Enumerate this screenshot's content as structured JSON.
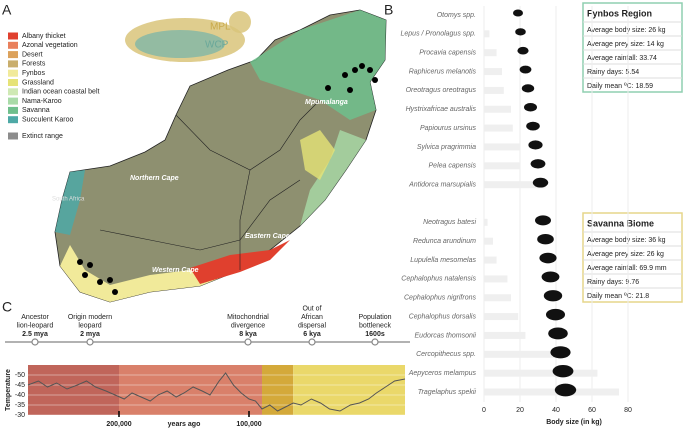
{
  "panels": {
    "a": "A",
    "b": "B",
    "c": "C"
  },
  "map": {
    "legend": [
      {
        "label": "Albany thicket",
        "color": "#e0402e"
      },
      {
        "label": "Azonal vegetation",
        "color": "#e9805c"
      },
      {
        "label": "Desert",
        "color": "#dca25c"
      },
      {
        "label": "Forests",
        "color": "#c9ae6c"
      },
      {
        "label": "Fynbos",
        "color": "#f1ea9a"
      },
      {
        "label": "Grassland",
        "color": "#e6e377"
      },
      {
        "label": "Indian ocean coastal belt",
        "color": "#cfe9b4"
      },
      {
        "label": "Nama-Karoo",
        "color": "#a9dba8"
      },
      {
        "label": "Savanna",
        "color": "#6fbf8c"
      },
      {
        "label": "Succulent Karoo",
        "color": "#4ea9a6"
      }
    ],
    "extinct_range": {
      "label": "Extinct range",
      "color": "#8c8c8c"
    },
    "cat_labels": [
      "MPL",
      "WCP"
    ],
    "province_labels": [
      "Mpumalanga",
      "Northern Cape",
      "Eastern Cape",
      "Western Cape",
      "South Africa"
    ]
  },
  "info_boxes": [
    {
      "title": "Fynbos Region",
      "lines": [
        "Average body size: 26 kg",
        "Average prey size: 14 kg",
        "Average rainfall: 33.74",
        "Rainy days: 5.54",
        "Daily mean ºC: 18.59"
      ],
      "color": "#8fcfb0"
    },
    {
      "title": "Savanna Biome",
      "lines": [
        "Average body size: 36 kg",
        "Average prey size: 26 kg",
        "Average rainfall: 69.9 mm",
        "Rainy days: 9.76",
        "Daily mean ºC: 21.8"
      ],
      "color": "#e6d58a"
    }
  ],
  "timeline": {
    "events": [
      {
        "label": [
          "Ancestor",
          "lion-leopard"
        ],
        "date": "2.5 mya"
      },
      {
        "label": [
          "Origin modern",
          "leopard"
        ],
        "date": "2 mya"
      },
      {
        "label": [
          "Mitochondrial",
          "divergence"
        ],
        "date": "8 kya"
      },
      {
        "label": [
          "Out of",
          "African",
          "dispersal"
        ],
        "date": "6 kya"
      },
      {
        "label": [
          "Population",
          "bottleneck"
        ],
        "date": "1600s"
      }
    ]
  },
  "chart_data": [
    {
      "type": "bar",
      "orientation": "horizontal",
      "xlabel": "Body size (in kg)",
      "color": "#efefef",
      "categories": [
        "Otomys spp.",
        "Lepus / Pronolagus spp.",
        "Procavia capensis",
        "Raphicerus melanotis",
        "Oreotragus oreotragus",
        "Hystrixafricae australis",
        "Papiourus ursinus",
        "Sylvica pragrimmia",
        "Pelea capensis",
        "Antidorca marsupialis",
        "Neotragus batesi",
        "Redunca arundinum",
        "Lupulella mesomelas",
        "Cephalophus natalensis",
        "Cephalophus nigrifrons",
        "Cephalophus dorsalis",
        "Eudorcas thomsonii",
        "Cercopithecus spp.",
        "Aepyceros melampus",
        "Tragelaphus spekii"
      ],
      "values": [
        0.1,
        3,
        7,
        10,
        11,
        15,
        16,
        20,
        20,
        34,
        2,
        5,
        7,
        13,
        15,
        19,
        23,
        42,
        63,
        75
      ],
      "xlim": [
        0,
        100
      ],
      "xticks": [
        0,
        20,
        40,
        60,
        80
      ],
      "grid": true
    },
    {
      "type": "line",
      "ylabel": "Temperature",
      "xlabel": "years ago",
      "inverted": true,
      "x": [
        270000,
        262000,
        255000,
        248000,
        240000,
        232000,
        225000,
        218000,
        210000,
        203000,
        196000,
        190000,
        183000,
        176000,
        170000,
        163000,
        156000,
        150000,
        143000,
        136000,
        130000,
        123000,
        118000,
        112000,
        106000,
        100000,
        95000,
        90000,
        84000,
        78000,
        72000,
        66000,
        60000,
        52000,
        45000,
        38000,
        30000,
        22000,
        15000,
        8000,
        2000,
        -5000,
        -12000,
        -20000
      ],
      "series": [
        {
          "color": "#555555",
          "values": [
            -45,
            -47,
            -44,
            -46,
            -43,
            -45,
            -47,
            -44,
            -42,
            -40,
            -38,
            -41,
            -39,
            -37,
            -40,
            -42,
            -39,
            -41,
            -44,
            -42,
            -40,
            -47,
            -51,
            -45,
            -41,
            -38,
            -37,
            -33,
            -35,
            -32,
            -34,
            -36,
            -35,
            -38,
            -36,
            -33,
            -32,
            -35,
            -36,
            -38,
            -41,
            -44,
            -47,
            -48
          ]
        }
      ],
      "bands": [
        {
          "from": 270000,
          "to": 200000,
          "color": "#c0655a"
        },
        {
          "from": 200000,
          "to": 90000,
          "color": "#d9806a"
        },
        {
          "from": 90000,
          "to": 66000,
          "color": "#d4a93a"
        },
        {
          "from": 66000,
          "to": -20000,
          "color": "#ead86a"
        }
      ],
      "xlim": [
        270000,
        -20000
      ],
      "ylim": [
        -55,
        -30
      ],
      "xticks": [
        {
          "value": 200000,
          "label": "200,000"
        },
        {
          "value": 100000,
          "label": "100,000"
        }
      ],
      "yticks": [
        -50,
        -45,
        -40,
        -35,
        -30
      ]
    }
  ]
}
